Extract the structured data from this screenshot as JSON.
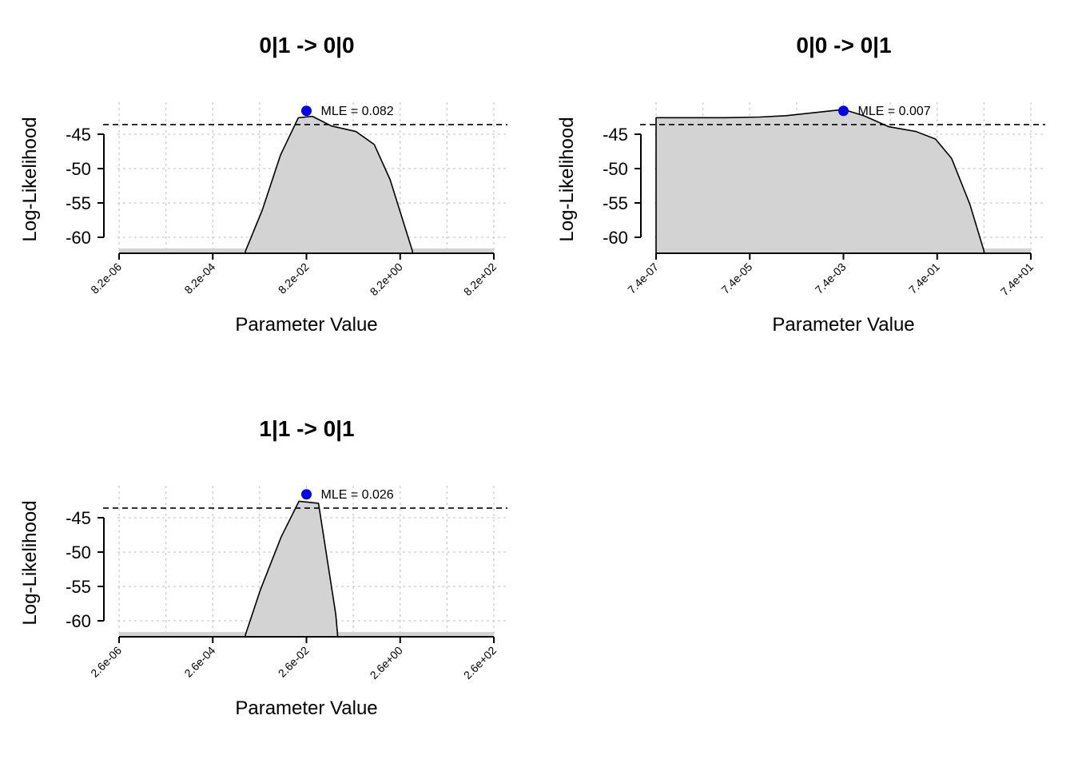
{
  "chart_data": [
    {
      "type": "area",
      "title": "0|1 -> 0|0",
      "xlabel": "Parameter Value",
      "ylabel": "Log-Likelihood",
      "x_scale": "log",
      "x_ticks": [
        8.2e-06,
        0.00082,
        0.082,
        8.2,
        820
      ],
      "x_tick_labels": [
        "8.2e-06",
        "8.2e-04",
        "8.2e-02",
        "8.2e+00",
        "8.2e+02"
      ],
      "ylim": [
        -62,
        -40
      ],
      "y_ticks": [
        -45,
        -50,
        -55,
        -60
      ],
      "y_tick_labels": [
        "-45",
        "-50",
        "-55",
        "-60"
      ],
      "grid": true,
      "threshold": -43.6,
      "mle": {
        "x": 0.082,
        "y": -41.6,
        "label": "MLE = 0.082"
      },
      "x": [
        0.0041,
        0.0094,
        0.023,
        0.055,
        0.11,
        0.28,
        0.93,
        2.3,
        5.0,
        15
      ],
      "y": [
        -62,
        -56,
        -48,
        -42.6,
        -42.4,
        -43.8,
        -44.6,
        -46.5,
        -51.6,
        -62
      ]
    },
    {
      "type": "area",
      "title": "0|0 -> 0|1",
      "xlabel": "Parameter Value",
      "ylabel": "Log-Likelihood",
      "x_scale": "log",
      "x_ticks": [
        7.4e-07,
        7.4e-05,
        0.0074,
        0.74,
        74
      ],
      "x_tick_labels": [
        "7.4e-07",
        "7.4e-05",
        "7.4e-03",
        "7.4e-01",
        "7.4e+01"
      ],
      "ylim": [
        -62,
        -40
      ],
      "y_ticks": [
        -45,
        -50,
        -55,
        -60
      ],
      "y_tick_labels": [
        "-45",
        "-50",
        "-55",
        "-60"
      ],
      "grid": true,
      "threshold": -43.6,
      "mle": {
        "x": 0.0074,
        "y": -41.6,
        "label": "MLE = 0.007"
      },
      "x": [
        7.4e-07,
        2.3e-05,
        0.00012,
        0.00044,
        0.0074,
        0.02,
        0.068,
        0.26,
        0.68,
        1.5,
        3.7,
        7.4
      ],
      "y": [
        -42.6,
        -42.6,
        -42.5,
        -42.3,
        -41.4,
        -42.3,
        -43.9,
        -44.6,
        -45.7,
        -48.5,
        -55.2,
        -62
      ]
    },
    {
      "type": "area",
      "title": "1|1 -> 0|1",
      "xlabel": "Parameter Value",
      "ylabel": "Log-Likelihood",
      "x_scale": "log",
      "x_ticks": [
        2.6e-06,
        0.00026,
        0.026,
        2.6,
        260
      ],
      "x_tick_labels": [
        "2.6e-06",
        "2.6e-04",
        "2.6e-02",
        "2.6e+00",
        "2.6e+02"
      ],
      "ylim": [
        -62,
        -40
      ],
      "y_ticks": [
        -45,
        -50,
        -55,
        -60
      ],
      "y_tick_labels": [
        "-45",
        "-50",
        "-55",
        "-60"
      ],
      "grid": true,
      "threshold": -43.6,
      "mle": {
        "x": 0.026,
        "y": -41.6,
        "label": "MLE = 0.026"
      },
      "x": [
        0.0013,
        0.0027,
        0.0075,
        0.018,
        0.047,
        0.11,
        0.12
      ],
      "y": [
        -62,
        -55.5,
        -47.8,
        -42.6,
        -42.9,
        -59.1,
        -62
      ]
    }
  ]
}
